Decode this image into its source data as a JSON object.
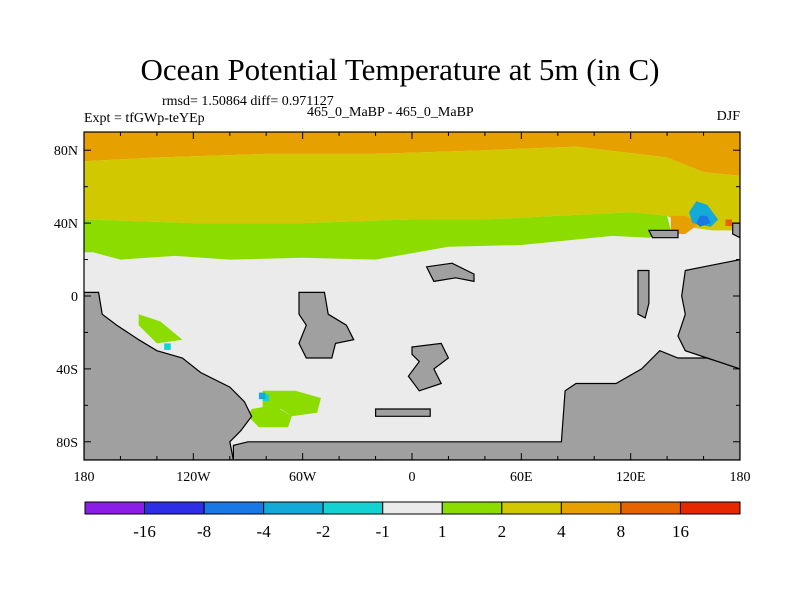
{
  "chart_data": {
    "type": "heatmap",
    "title": "Ocean Potential Temperature at 5m (in C)",
    "stats": "rmsd= 1.50864 diff= 0.971127",
    "experiment": "Expt = tfGWp-teYEp",
    "comparison": "465_0_MaBP - 465_0_MaBP",
    "season": "DJF",
    "xlim": [
      -180,
      180
    ],
    "ylim": [
      -90,
      90
    ],
    "x_ticks": [
      -180,
      -120,
      -60,
      0,
      60,
      120,
      180
    ],
    "x_tick_labels": [
      "180",
      "120W",
      "60W",
      "0",
      "60E",
      "120E",
      "180"
    ],
    "y_ticks": [
      80,
      40,
      0,
      -40,
      -80
    ],
    "y_tick_labels": [
      "80N",
      "40N",
      "0",
      "40S",
      "80S"
    ],
    "legend": {
      "colors": [
        "#8a1ee6",
        "#2e2ee6",
        "#1a78e6",
        "#14aad8",
        "#14d2d2",
        "#ebebeb",
        "#8cdc00",
        "#d2c800",
        "#e6a000",
        "#e66400",
        "#e62800"
      ],
      "boundaries": [
        "-16",
        "-8",
        "-4",
        "-2",
        "-1",
        "1",
        "2",
        "4",
        "8",
        "16"
      ]
    },
    "regions": [
      {
        "name": "arctic",
        "bin": 8,
        "polygon": [
          [
            -180,
            90
          ],
          [
            180,
            90
          ],
          [
            180,
            66
          ],
          [
            160,
            68
          ],
          [
            140,
            76
          ],
          [
            90,
            82
          ],
          [
            40,
            80
          ],
          [
            -20,
            78
          ],
          [
            -80,
            78
          ],
          [
            -140,
            76
          ],
          [
            -180,
            74
          ]
        ]
      },
      {
        "name": "north-midlatitudes",
        "bin": 7,
        "polygon": [
          [
            -180,
            74
          ],
          [
            -140,
            76
          ],
          [
            -80,
            78
          ],
          [
            -20,
            78
          ],
          [
            40,
            80
          ],
          [
            90,
            82
          ],
          [
            140,
            76
          ],
          [
            160,
            68
          ],
          [
            180,
            66
          ],
          [
            180,
            36
          ],
          [
            165,
            36
          ],
          [
            150,
            38
          ],
          [
            140,
            44
          ],
          [
            120,
            46
          ],
          [
            80,
            44
          ],
          [
            40,
            42
          ],
          [
            0,
            42
          ],
          [
            -60,
            40
          ],
          [
            -120,
            40
          ],
          [
            -180,
            42
          ]
        ]
      },
      {
        "name": "north-subtropical-band",
        "bin": 6,
        "polygon": [
          [
            -180,
            42
          ],
          [
            -120,
            40
          ],
          [
            -60,
            40
          ],
          [
            0,
            42
          ],
          [
            40,
            42
          ],
          [
            80,
            44
          ],
          [
            120,
            46
          ],
          [
            140,
            44
          ],
          [
            142,
            36
          ],
          [
            130,
            32
          ],
          [
            110,
            33
          ],
          [
            60,
            28
          ],
          [
            20,
            27
          ],
          [
            -20,
            20
          ],
          [
            -60,
            21
          ],
          [
            -100,
            20
          ],
          [
            -130,
            22
          ],
          [
            -160,
            20
          ],
          [
            -175,
            24
          ],
          [
            -180,
            24
          ]
        ]
      },
      {
        "name": "western-boundary-warm",
        "bin": 8,
        "polygon": [
          [
            142,
            44
          ],
          [
            150,
            44
          ],
          [
            158,
            40
          ],
          [
            150,
            34
          ],
          [
            142,
            34
          ]
        ]
      },
      {
        "name": "cold-anomaly-pacific",
        "bin": 3,
        "polygon": [
          [
            156,
            52
          ],
          [
            162,
            50
          ],
          [
            168,
            42
          ],
          [
            164,
            38
          ],
          [
            154,
            40
          ],
          [
            152,
            46
          ]
        ]
      },
      {
        "name": "cold-anomaly-core",
        "bin": 2,
        "polygon": [
          [
            158,
            44
          ],
          [
            162,
            44
          ],
          [
            164,
            40
          ],
          [
            158,
            38
          ],
          [
            156,
            40
          ]
        ]
      },
      {
        "name": "south-pacific-band",
        "bin": 6,
        "polygon": [
          [
            -150,
            -10
          ],
          [
            -138,
            -14
          ],
          [
            -126,
            -24
          ],
          [
            -140,
            -26
          ],
          [
            -150,
            -16
          ]
        ]
      },
      {
        "name": "southern-atlantic-band",
        "bin": 6,
        "polygon": [
          [
            -82,
            -52
          ],
          [
            -64,
            -52
          ],
          [
            -50,
            -56
          ],
          [
            -52,
            -64
          ],
          [
            -66,
            -66
          ],
          [
            -72,
            -62
          ],
          [
            -82,
            -62
          ]
        ]
      },
      {
        "name": "southern-drake-band",
        "bin": 6,
        "polygon": [
          [
            -88,
            -62
          ],
          [
            -76,
            -60
          ],
          [
            -66,
            -66
          ],
          [
            -68,
            -72
          ],
          [
            -84,
            -72
          ],
          [
            -90,
            -66
          ]
        ]
      }
    ],
    "land": [
      {
        "name": "americas-coast",
        "polygon": [
          [
            -180,
            2
          ],
          [
            -172,
            2
          ],
          [
            -170,
            -10
          ],
          [
            -162,
            -16
          ],
          [
            -150,
            -24
          ],
          [
            -140,
            -30
          ],
          [
            -126,
            -34
          ],
          [
            -116,
            -42
          ],
          [
            -100,
            -50
          ],
          [
            -92,
            -58
          ],
          [
            -88,
            -66
          ],
          [
            -94,
            -74
          ],
          [
            -100,
            -80
          ],
          [
            -98,
            -90
          ],
          [
            -180,
            -90
          ]
        ]
      },
      {
        "name": "mid-atlantic-block",
        "polygon": [
          [
            -62,
            2
          ],
          [
            -48,
            2
          ],
          [
            -46,
            -10
          ],
          [
            -36,
            -16
          ],
          [
            -32,
            -24
          ],
          [
            -42,
            -26
          ],
          [
            -44,
            -34
          ],
          [
            -58,
            -34
          ],
          [
            -62,
            -26
          ],
          [
            -58,
            -16
          ],
          [
            -62,
            -10
          ]
        ]
      },
      {
        "name": "southern-ocean-sliver",
        "polygon": [
          [
            -20,
            -62
          ],
          [
            10,
            -62
          ],
          [
            10,
            -66
          ],
          [
            -20,
            -66
          ]
        ]
      },
      {
        "name": "central-south-block",
        "polygon": [
          [
            0,
            -28
          ],
          [
            16,
            -26
          ],
          [
            20,
            -34
          ],
          [
            12,
            -40
          ],
          [
            16,
            -48
          ],
          [
            4,
            -52
          ],
          [
            -2,
            -44
          ],
          [
            4,
            -36
          ],
          [
            0,
            -32
          ]
        ]
      },
      {
        "name": "north-central-ridge",
        "polygon": [
          [
            8,
            16
          ],
          [
            22,
            18
          ],
          [
            34,
            12
          ],
          [
            34,
            8
          ],
          [
            24,
            10
          ],
          [
            12,
            8
          ],
          [
            10,
            12
          ]
        ]
      },
      {
        "name": "eastern-island",
        "polygon": [
          [
            124,
            14
          ],
          [
            130,
            14
          ],
          [
            130,
            -4
          ],
          [
            128,
            -12
          ],
          [
            124,
            -10
          ]
        ]
      },
      {
        "name": "east-peninsula",
        "polygon": [
          [
            130,
            36
          ],
          [
            146,
            36
          ],
          [
            146,
            32
          ],
          [
            132,
            32
          ]
        ]
      },
      {
        "name": "antarctic-shelf",
        "polygon": [
          [
            -98,
            -90
          ],
          [
            180,
            -90
          ],
          [
            180,
            -40
          ],
          [
            168,
            -36
          ],
          [
            162,
            -34
          ],
          [
            146,
            -34
          ],
          [
            136,
            -30
          ],
          [
            126,
            -40
          ],
          [
            112,
            -48
          ],
          [
            90,
            -48
          ],
          [
            84,
            -52
          ],
          [
            82,
            -80
          ],
          [
            10,
            -80
          ],
          [
            -90,
            -80
          ],
          [
            -98,
            -82
          ]
        ]
      },
      {
        "name": "east-continent",
        "polygon": [
          [
            150,
            14
          ],
          [
            160,
            16
          ],
          [
            180,
            20
          ],
          [
            180,
            -40
          ],
          [
            168,
            -36
          ],
          [
            162,
            -34
          ],
          [
            150,
            -30
          ],
          [
            146,
            -22
          ],
          [
            150,
            -10
          ],
          [
            148,
            0
          ]
        ]
      },
      {
        "name": "far-east-edge",
        "polygon": [
          [
            176,
            40
          ],
          [
            180,
            40
          ],
          [
            180,
            32
          ],
          [
            176,
            34
          ]
        ]
      }
    ],
    "specks": [
      {
        "bin": 4,
        "point": [
          -136,
          -26
        ]
      },
      {
        "bin": 4,
        "point": [
          -82,
          -54
        ]
      },
      {
        "bin": 3,
        "point": [
          -84,
          -53
        ]
      },
      {
        "bin": 5,
        "point": [
          178,
          36
        ]
      },
      {
        "bin": 9,
        "point": [
          172,
          42
        ]
      }
    ]
  }
}
